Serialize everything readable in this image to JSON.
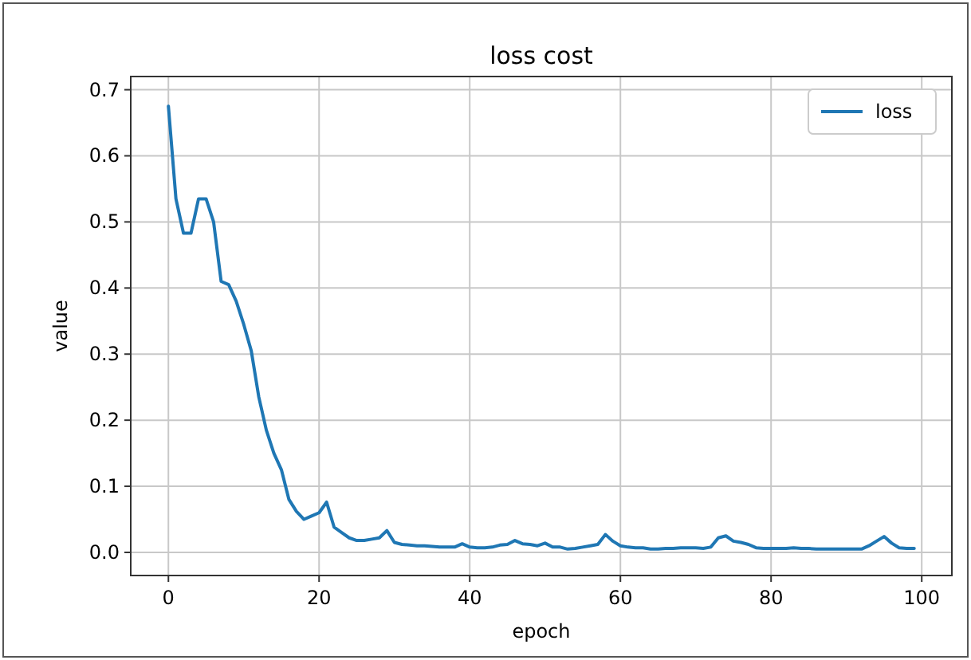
{
  "chart_data": {
    "type": "line",
    "title": "loss cost",
    "xlabel": "epoch",
    "ylabel": "value",
    "x": [
      0,
      1,
      2,
      3,
      4,
      5,
      6,
      7,
      8,
      9,
      10,
      11,
      12,
      13,
      14,
      15,
      16,
      17,
      18,
      19,
      20,
      21,
      22,
      23,
      24,
      25,
      26,
      27,
      28,
      29,
      30,
      31,
      32,
      33,
      34,
      35,
      36,
      37,
      38,
      39,
      40,
      41,
      42,
      43,
      44,
      45,
      46,
      47,
      48,
      49,
      50,
      51,
      52,
      53,
      54,
      55,
      56,
      57,
      58,
      59,
      60,
      61,
      62,
      63,
      64,
      65,
      66,
      67,
      68,
      69,
      70,
      71,
      72,
      73,
      74,
      75,
      76,
      77,
      78,
      79,
      80,
      81,
      82,
      83,
      84,
      85,
      86,
      87,
      88,
      89,
      90,
      91,
      92,
      93,
      94,
      95,
      96,
      97,
      98,
      99
    ],
    "series": [
      {
        "name": "loss",
        "color": "#1f77b4",
        "values": [
          0.675,
          0.535,
          0.483,
          0.483,
          0.535,
          0.535,
          0.5,
          0.41,
          0.405,
          0.38,
          0.345,
          0.305,
          0.235,
          0.185,
          0.15,
          0.125,
          0.08,
          0.062,
          0.05,
          0.055,
          0.06,
          0.076,
          0.038,
          0.03,
          0.022,
          0.018,
          0.018,
          0.02,
          0.022,
          0.033,
          0.015,
          0.012,
          0.011,
          0.01,
          0.01,
          0.009,
          0.008,
          0.008,
          0.008,
          0.013,
          0.008,
          0.007,
          0.007,
          0.008,
          0.011,
          0.012,
          0.018,
          0.013,
          0.012,
          0.01,
          0.014,
          0.008,
          0.008,
          0.005,
          0.006,
          0.008,
          0.01,
          0.012,
          0.027,
          0.017,
          0.01,
          0.008,
          0.007,
          0.007,
          0.005,
          0.005,
          0.006,
          0.006,
          0.007,
          0.007,
          0.007,
          0.006,
          0.008,
          0.022,
          0.025,
          0.017,
          0.015,
          0.012,
          0.007,
          0.006,
          0.006,
          0.006,
          0.006,
          0.007,
          0.006,
          0.006,
          0.005,
          0.005,
          0.005,
          0.005,
          0.005,
          0.005,
          0.005,
          0.01,
          0.017,
          0.024,
          0.014,
          0.007,
          0.006,
          0.006
        ]
      }
    ],
    "xlim": [
      -5,
      104
    ],
    "ylim": [
      -0.035,
      0.72
    ],
    "xticks": [
      0,
      20,
      40,
      60,
      80,
      100
    ],
    "yticks": [
      {
        "value": 0,
        "label": "0.0"
      },
      {
        "value": 0.1,
        "label": "0.1"
      },
      {
        "value": 0.2,
        "label": "0.2"
      },
      {
        "value": 0.3,
        "label": "0.3"
      },
      {
        "value": 0.4,
        "label": "0.4"
      },
      {
        "value": 0.5,
        "label": "0.5"
      },
      {
        "value": 0.6,
        "label": "0.6"
      },
      {
        "value": 0.7,
        "label": "0.7"
      }
    ],
    "grid": true,
    "legend": "top right",
    "line_style": "solid",
    "marker": "none"
  }
}
